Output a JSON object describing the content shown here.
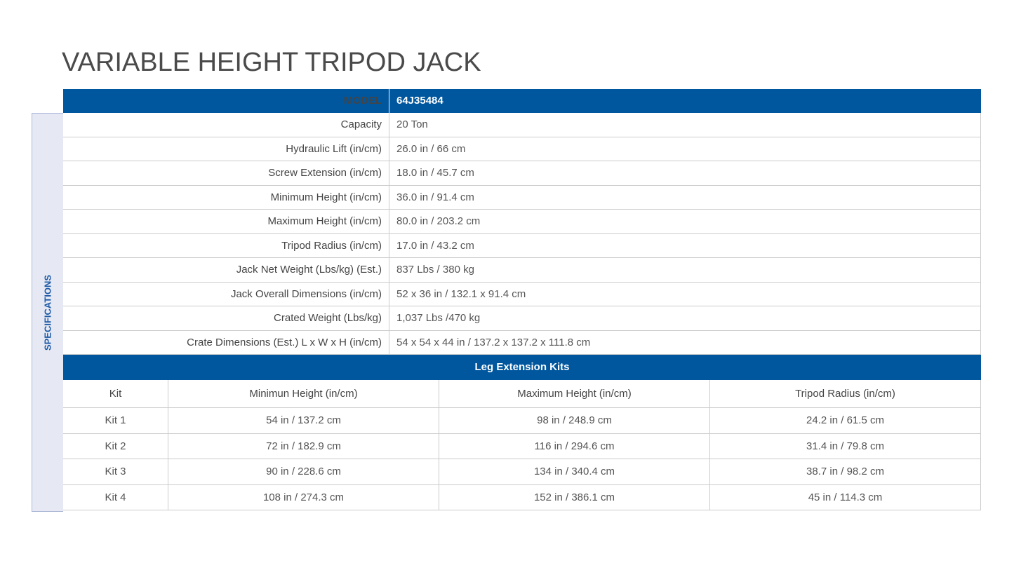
{
  "title": "VARIABLE HEIGHT TRIPOD JACK",
  "side_label": "SPECIFICATIONS",
  "model": {
    "label": "MODEL",
    "value": "64J35484"
  },
  "specs": [
    {
      "label": "Capacity",
      "value": "20 Ton"
    },
    {
      "label": "Hydraulic Lift (in/cm)",
      "value": "26.0 in / 66 cm"
    },
    {
      "label": "Screw Extension (in/cm)",
      "value": "18.0 in / 45.7 cm"
    },
    {
      "label": "Minimum Height (in/cm)",
      "value": "36.0 in / 91.4 cm"
    },
    {
      "label": "Maximum Height (in/cm)",
      "value": "80.0 in / 203.2 cm"
    },
    {
      "label": "Tripod Radius (in/cm)",
      "value": "17.0 in / 43.2 cm"
    },
    {
      "label": "Jack Net Weight (Lbs/kg) (Est.)",
      "value": "837 Lbs / 380 kg"
    },
    {
      "label": "Jack Overall Dimensions (in/cm)",
      "value": "52 x 36 in / 132.1 x 91.4 cm"
    },
    {
      "label": "Crated Weight  (Lbs/kg)",
      "value": "1,037 Lbs /470 kg"
    },
    {
      "label": "Crate Dimensions (Est.) L x W x H (in/cm)",
      "value": "54 x 54 x 44 in / 137.2 x 137.2 x 111.8 cm"
    }
  ],
  "kits": {
    "title": "Leg Extension Kits",
    "headers": [
      "Kit",
      "Minimun Height (in/cm)",
      "Maximum Height (in/cm)",
      "Tripod Radius (in/cm)"
    ],
    "rows": [
      [
        "Kit 1",
        "54 in / 137.2 cm",
        "98 in / 248.9 cm",
        "24.2 in / 61.5 cm"
      ],
      [
        "Kit 2",
        "72 in / 182.9 cm",
        "116 in / 294.6 cm",
        "31.4 in / 79.8 cm"
      ],
      [
        "Kit 3",
        "90 in / 228.6 cm",
        "134 in / 340.4 cm",
        "38.7 in / 98.2 cm"
      ],
      [
        "Kit 4",
        "108 in / 274.3 cm",
        "152 in / 386.1 cm",
        "45 in / 114.3 cm"
      ]
    ]
  },
  "colors": {
    "header_blue": "#00579e",
    "side_bg": "#e6e9f4"
  }
}
